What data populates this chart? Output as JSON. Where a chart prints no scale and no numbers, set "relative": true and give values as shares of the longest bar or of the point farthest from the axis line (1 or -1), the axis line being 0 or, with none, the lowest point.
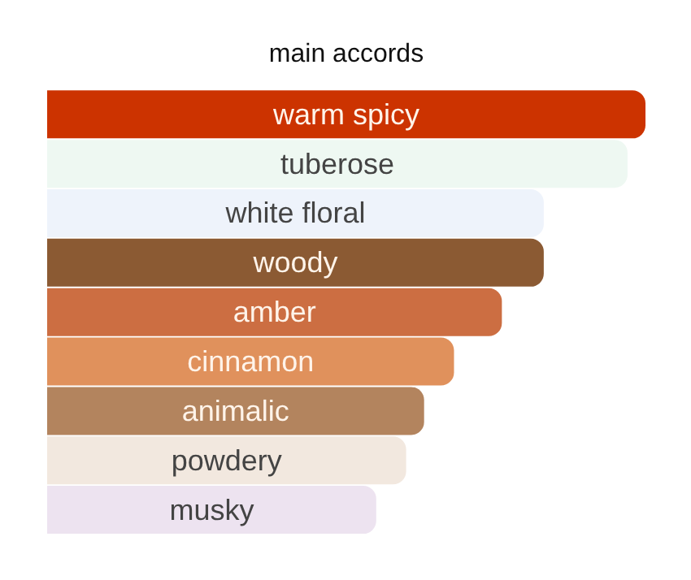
{
  "chart_data": {
    "type": "bar",
    "title": "main accords",
    "orientation": "horizontal",
    "relative": true,
    "categories": [
      "warm spicy",
      "tuberose",
      "white floral",
      "woody",
      "amber",
      "cinnamon",
      "animalic",
      "powdery",
      "musky"
    ],
    "values": [
      1,
      0.97,
      0.83,
      0.83,
      0.76,
      0.68,
      0.63,
      0.6,
      0.55
    ],
    "colors": [
      "#cc3300",
      "#eef8f2",
      "#eef3fb",
      "#8b5a33",
      "#cc6e42",
      "#e0915c",
      "#b3845e",
      "#f2e8df",
      "#ede3f0"
    ],
    "legend": false
  }
}
